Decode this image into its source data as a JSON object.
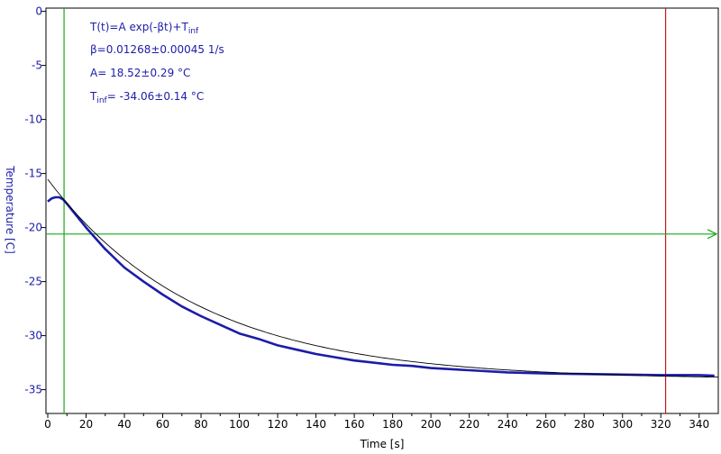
{
  "chart_data": {
    "type": "line",
    "xlabel": "Time [s]",
    "ylabel": "Temperature [C]",
    "xlim": [
      0,
      350
    ],
    "ylim": [
      -37.2,
      0.3
    ],
    "x_ticks": [
      0,
      20,
      40,
      60,
      80,
      100,
      120,
      140,
      160,
      180,
      200,
      220,
      240,
      260,
      280,
      300,
      320,
      340
    ],
    "y_ticks": [
      0,
      -5,
      -10,
      -15,
      -20,
      -25,
      -30,
      -35
    ],
    "x_tick_labels": [
      "0",
      "20",
      "40",
      "60",
      "80",
      "100",
      "120",
      "140",
      "160",
      "180",
      "200",
      "220",
      "240",
      "260",
      "280",
      "300",
      "320",
      "340"
    ],
    "y_tick_labels": [
      "0",
      "-5",
      "-10",
      "-15",
      "-20",
      "-25",
      "-30",
      "-35"
    ],
    "grid": false,
    "series": [
      {
        "color": "#1c1ca8",
        "x": [
          0,
          2,
          4,
          6,
          8,
          10,
          15,
          20,
          25,
          30,
          40,
          50,
          60,
          70,
          80,
          90,
          100,
          110,
          120,
          130,
          140,
          150,
          160,
          170,
          180,
          190,
          200,
          220,
          240,
          260,
          280,
          300,
          320,
          340,
          348
        ],
        "y": [
          -17.6,
          -17.3,
          -17.2,
          -17.2,
          -17.4,
          -17.8,
          -18.9,
          -20.0,
          -21.0,
          -22.0,
          -23.7,
          -25.0,
          -26.2,
          -27.3,
          -28.2,
          -29.0,
          -29.8,
          -30.3,
          -30.9,
          -31.3,
          -31.7,
          -32.0,
          -32.3,
          -32.5,
          -32.7,
          -32.8,
          -33.0,
          -33.2,
          -33.4,
          -33.5,
          -33.55,
          -33.6,
          -33.65,
          -33.65,
          -33.7
        ]
      }
    ],
    "fit": {
      "color": "#000000",
      "x_range": [
        0,
        350
      ],
      "A": 18.52,
      "beta": 0.01268,
      "T_inf": -34.06
    },
    "markers": {
      "green_vertical_x": 8.5,
      "green_horizontal_y": -20.6,
      "red_vertical_x": 322.5,
      "green_color": "#1aa81a",
      "red_color": "#c0171d"
    },
    "annotations": {
      "formula_main": "T(t)=A exp(-βt)+T",
      "formula_sub": "inf",
      "beta_text": "β=0.01268±0.00045 1/s",
      "a_text": "A= 18.52±0.29 °C",
      "tinf_main": "T",
      "tinf_sub": "inf",
      "tinf_rest": "= -34.06±0.14 °C"
    },
    "colors": {
      "accent": "#1c1ca8",
      "axis": "#000000"
    }
  }
}
